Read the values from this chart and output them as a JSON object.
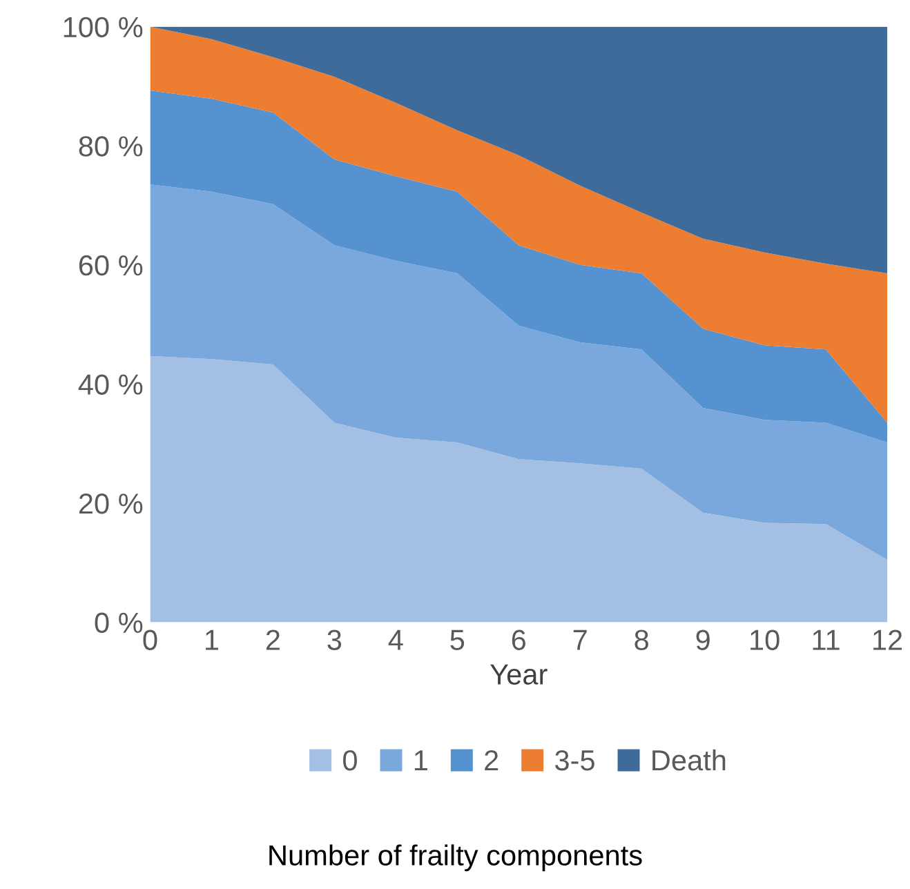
{
  "chart_data": {
    "type": "area",
    "stacked": true,
    "xlabel": "Year",
    "legend_title": "Number of frailty components",
    "legend": "bottom",
    "grid": false,
    "x": [
      0,
      1,
      2,
      3,
      4,
      5,
      6,
      7,
      8,
      9,
      10,
      11,
      12
    ],
    "xlim": [
      0,
      12
    ],
    "xticks": [
      0,
      1,
      2,
      3,
      4,
      5,
      6,
      7,
      8,
      9,
      10,
      11,
      12
    ],
    "ylim": [
      0,
      100
    ],
    "yticks": [
      {
        "value": 0,
        "label": "0 %"
      },
      {
        "value": 20,
        "label": "20 %"
      },
      {
        "value": 40,
        "label": "40 %"
      },
      {
        "value": 60,
        "label": "60 %"
      },
      {
        "value": 80,
        "label": "80 %"
      },
      {
        "value": 100,
        "label": "100 %"
      }
    ],
    "series": [
      {
        "name": "0",
        "color": "#a3c0e4",
        "values": [
          44.7,
          44.2,
          43.3,
          33.5,
          31,
          30.2,
          27.4,
          26.7,
          25.8,
          18.4,
          16.7,
          16.5,
          10.5
        ]
      },
      {
        "name": "1",
        "color": "#7aa7dc",
        "values": [
          28.8,
          28.1,
          26.9,
          29.8,
          29.7,
          28.4,
          22.4,
          20.3,
          20,
          17.6,
          17.3,
          17,
          19.7
        ]
      },
      {
        "name": "2",
        "color": "#5592cf",
        "values": [
          15.8,
          15.6,
          15.4,
          14.4,
          14.2,
          13.7,
          13.5,
          13,
          12.8,
          13.3,
          12.5,
          12.3,
          3.3
        ]
      },
      {
        "name": "3-5",
        "color": "#ed7d31",
        "values": [
          10.7,
          10,
          9.3,
          13.9,
          12.3,
          10.3,
          15.1,
          13.3,
          10.2,
          15.1,
          15.6,
          14.4,
          25.1
        ]
      },
      {
        "name": "Death",
        "color": "#3e6b9a",
        "values": [
          0,
          2.1,
          5.1,
          8.4,
          12.8,
          17.4,
          21.6,
          26.7,
          31.2,
          35.6,
          37.9,
          39.8,
          41.4
        ]
      }
    ]
  }
}
